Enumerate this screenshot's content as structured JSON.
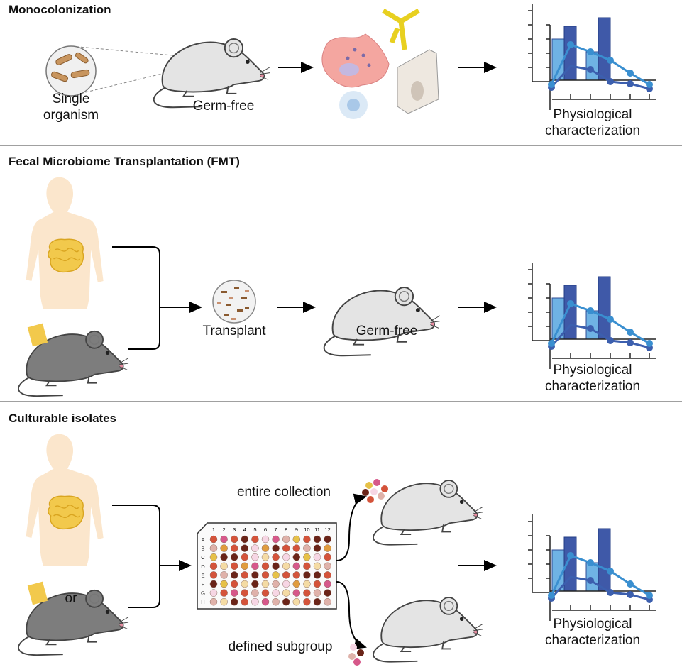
{
  "sections": {
    "mono": {
      "title": "Monocolonization",
      "organism_label": "Single organism",
      "mouse_label": "Germ-free",
      "result_label_1": "Physiological",
      "result_label_2": "characterization"
    },
    "fmt": {
      "title": "Fecal Microbiome Transplantation (FMT)",
      "transplant_label": "Transplant",
      "mouse_label": "Germ-free",
      "result_label_1": "Physiological",
      "result_label_2": "characterization"
    },
    "isolates": {
      "title": "Culturable isolates",
      "or_label": "or",
      "entire_label": "entire collection",
      "subgroup_label": "defined subgroup",
      "result_label_1": "Physiological",
      "result_label_2": "characterization"
    }
  },
  "plate": {
    "columns": [
      "1",
      "2",
      "3",
      "4",
      "5",
      "6",
      "7",
      "8",
      "9",
      "10",
      "11",
      "12"
    ],
    "rows": [
      "A",
      "B",
      "C",
      "D",
      "E",
      "F",
      "G",
      "H"
    ],
    "wells": [
      "rprdrlpsyrdd",
      "sordlodrrsdo",
      "yddrlcrldylr",
      "rcroprdcprcs",
      "rsdrdryrrddr",
      "dyrcdcslocrp",
      "lrprsrlcprsd",
      "scdrlpsdcrds"
    ],
    "colors": {
      "r": "#d4533a",
      "p": "#d6588a",
      "d": "#6a2418",
      "l": "#f6d6e4",
      "s": "#dfb2aa",
      "y": "#e6c148",
      "o": "#e09c3e",
      "c": "#f4dba4"
    }
  },
  "colors": {
    "light_bar": "#6fb3e4",
    "dark_bar": "#3f59a8",
    "line_light": "#3a8fd0",
    "line_dark": "#3c5fae",
    "mouse_light": "#e4e4e4",
    "mouse_dark": "#7d7d7d",
    "skin": "#fbe3c6",
    "gut": "#f2c94c"
  }
}
